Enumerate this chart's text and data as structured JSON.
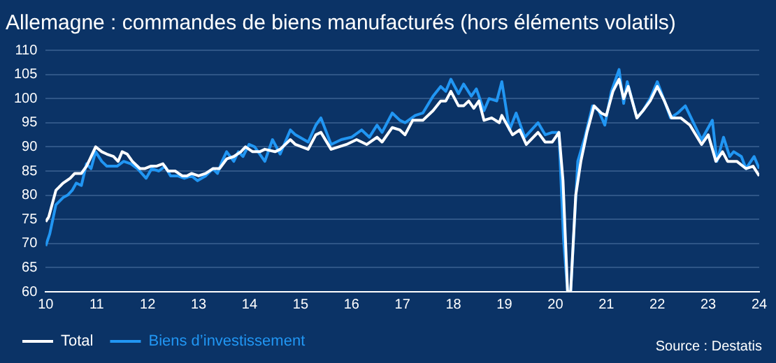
{
  "chart_data": {
    "type": "line",
    "title": "Allemagne : commandes de biens manufacturés (hors éléments volatils)",
    "annotations": [
      "Source : Destatis"
    ],
    "xlim": [
      10,
      24
    ],
    "xticks": [
      10,
      11,
      12,
      13,
      14,
      15,
      16,
      17,
      18,
      19,
      20,
      21,
      22,
      23,
      24
    ],
    "ylim": [
      60,
      110
    ],
    "yticks": [
      60,
      65,
      70,
      75,
      80,
      85,
      90,
      95,
      100,
      105,
      110
    ],
    "grid": "y",
    "legend": "bottom left",
    "marker": "none",
    "line_style": "solid",
    "series": [
      {
        "name": "Total",
        "color": "#ffffff",
        "x": [
          10,
          10.06,
          10.2,
          10.34,
          10.48,
          10.57,
          10.7,
          10.8,
          10.87,
          10.98,
          11.1,
          11.2,
          11.33,
          11.42,
          11.5,
          11.6,
          11.7,
          11.85,
          11.94,
          12.06,
          12.17,
          12.3,
          12.4,
          12.54,
          12.68,
          12.77,
          12.86,
          13,
          13.14,
          13.28,
          13.41,
          13.55,
          13.69,
          13.83,
          13.92,
          14.06,
          14.2,
          14.3,
          14.5,
          14.6,
          14.8,
          14.9,
          15.15,
          15.3,
          15.4,
          15.6,
          15.75,
          15.9,
          16.1,
          16.3,
          16.5,
          16.6,
          16.8,
          16.95,
          17.05,
          17.2,
          17.4,
          17.6,
          17.75,
          17.85,
          17.95,
          18.1,
          18.2,
          18.3,
          18.4,
          18.5,
          18.6,
          18.75,
          18.9,
          18.95,
          19.16,
          19.3,
          19.43,
          19.66,
          19.8,
          19.94,
          20.07,
          20.15,
          20.24,
          20.3,
          20.4,
          20.5,
          20.62,
          20.76,
          20.9,
          21,
          21.13,
          21.25,
          21.34,
          21.43,
          21.6,
          21.72,
          21.86,
          22,
          22.14,
          22.28,
          22.46,
          22.64,
          22.87,
          23,
          23.15,
          23.28,
          23.38,
          23.56,
          23.74,
          23.88,
          24
        ],
        "values": [
          74.5,
          75.5,
          81,
          82.5,
          83.5,
          84.5,
          84.5,
          86,
          87.5,
          90,
          89,
          88.5,
          88,
          87,
          89,
          88.5,
          87,
          85.5,
          85.5,
          86,
          86,
          86.5,
          85,
          85,
          84,
          84,
          84.5,
          84,
          84.5,
          85.5,
          85.5,
          87.5,
          88,
          89,
          90,
          89,
          89,
          89.5,
          89,
          89.5,
          91.5,
          90.5,
          89.5,
          92.5,
          93,
          89.5,
          90,
          90.5,
          91.5,
          90.5,
          92,
          91,
          94,
          93.5,
          92.5,
          95.5,
          95.5,
          97.5,
          99.5,
          99.5,
          101.5,
          98.5,
          98.5,
          99.5,
          98,
          99.5,
          95.5,
          96,
          95,
          96.5,
          92.5,
          93.5,
          90.5,
          93,
          91,
          91,
          93,
          83,
          60,
          60,
          80,
          87,
          93,
          98.5,
          97,
          96.5,
          101.5,
          104,
          100,
          102.5,
          96,
          97.5,
          99.5,
          102.5,
          99.5,
          96,
          96,
          94.5,
          90.5,
          92.5,
          87,
          89,
          87,
          87,
          85.5,
          86,
          84
        ]
      },
      {
        "name": "Biens d’investissement",
        "color": "#2196f3",
        "x": [
          10,
          10.08,
          10.2,
          10.34,
          10.43,
          10.52,
          10.6,
          10.7,
          10.8,
          10.89,
          10.98,
          11.1,
          11.2,
          11.4,
          11.53,
          11.67,
          11.8,
          11.97,
          12.08,
          12.22,
          12.34,
          12.45,
          12.59,
          12.72,
          12.86,
          12.98,
          13.14,
          13.28,
          13.37,
          13.46,
          13.55,
          13.69,
          13.78,
          13.87,
          13.99,
          14.1,
          14.3,
          14.45,
          14.6,
          14.8,
          14.9,
          15.15,
          15.3,
          15.4,
          15.6,
          15.8,
          16,
          16.2,
          16.35,
          16.5,
          16.6,
          16.8,
          16.95,
          17.05,
          17.25,
          17.4,
          17.6,
          17.75,
          17.85,
          17.95,
          18.1,
          18.2,
          18.35,
          18.45,
          18.6,
          18.7,
          18.85,
          18.95,
          19.1,
          19.23,
          19.4,
          19.66,
          19.8,
          19.94,
          20.07,
          20.16,
          20.24,
          20.3,
          20.44,
          20.58,
          20.73,
          20.85,
          20.97,
          21.1,
          21.25,
          21.34,
          21.41,
          21.6,
          21.72,
          21.86,
          22,
          22.14,
          22.26,
          22.4,
          22.55,
          22.87,
          23.08,
          23.17,
          23.3,
          23.42,
          23.5,
          23.65,
          23.74,
          23.9,
          24
        ],
        "values": [
          69.5,
          72,
          78,
          79.5,
          80,
          81,
          82.5,
          82,
          86.5,
          85.5,
          89,
          87,
          86,
          86,
          87,
          86.5,
          85.5,
          83.5,
          85.5,
          85,
          86,
          84,
          84,
          83.5,
          84,
          83,
          84,
          85.5,
          84.5,
          87,
          89,
          87,
          89,
          88,
          90.5,
          90,
          87,
          91.5,
          88.5,
          93.5,
          92.5,
          91,
          94.5,
          96,
          90.5,
          91.5,
          92,
          93.5,
          92,
          94.5,
          93,
          97,
          95.5,
          95,
          96.5,
          97,
          100.5,
          102.5,
          101.5,
          104,
          101,
          103,
          100.5,
          102,
          97.5,
          100,
          99.5,
          103.5,
          93.5,
          97,
          92,
          95,
          92.5,
          93,
          93,
          71,
          60,
          60,
          87,
          92,
          98.5,
          97.5,
          94.5,
          101.5,
          106,
          99,
          103.5,
          96,
          97.5,
          100,
          103.5,
          99.5,
          96,
          97,
          98.5,
          91.5,
          95.5,
          87,
          92,
          88,
          89,
          88,
          85.5,
          88,
          85.5
        ]
      }
    ]
  }
}
